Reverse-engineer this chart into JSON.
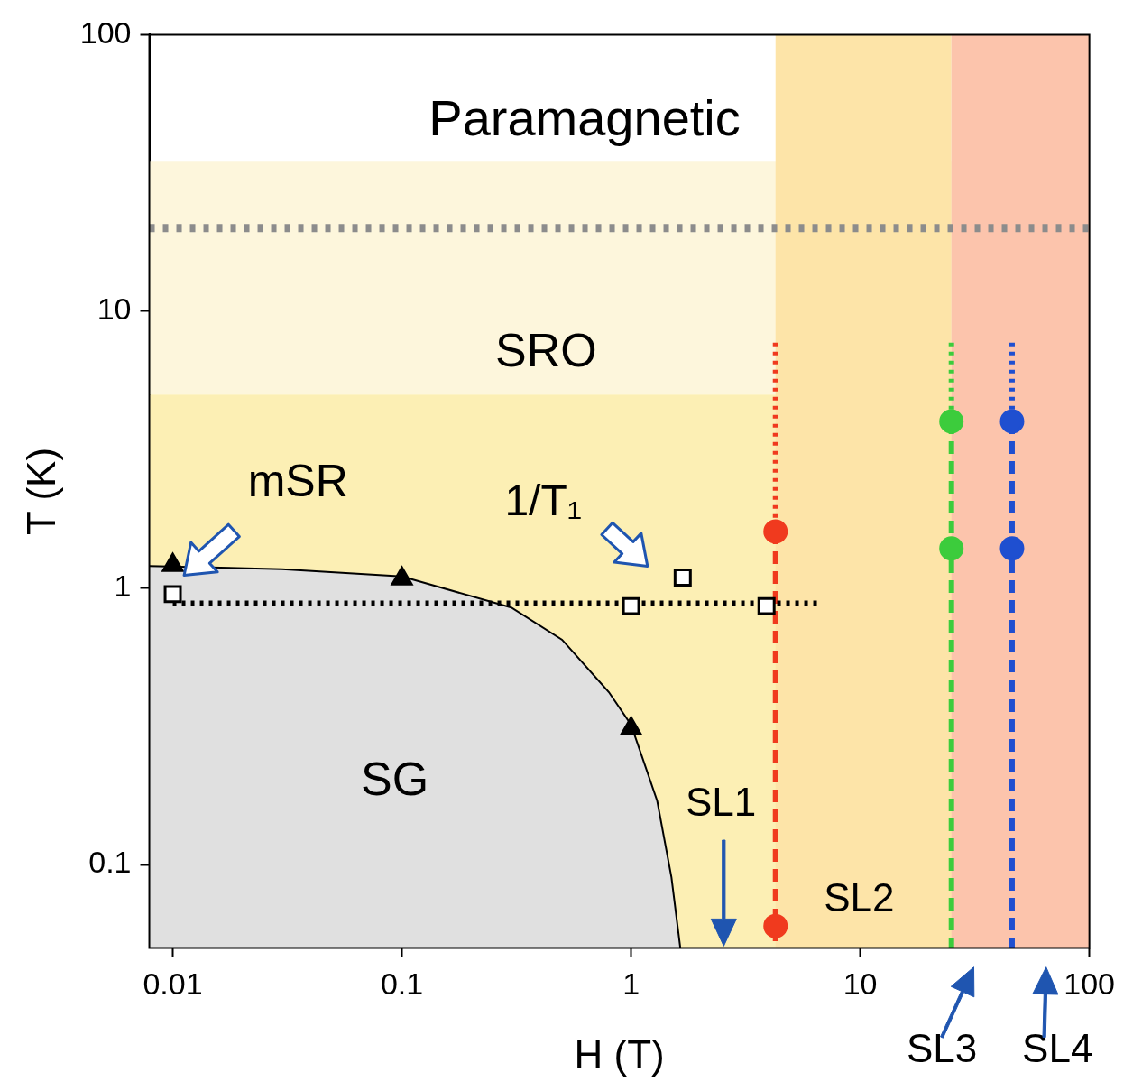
{
  "chart_data": {
    "type": "scatter",
    "xlabel": "H (T)",
    "ylabel": "T (K)",
    "log": "xy",
    "xlim": [
      0.0079,
      100
    ],
    "ylim": [
      0.05,
      100
    ],
    "xticks": [
      0.01,
      0.1,
      1,
      10,
      100
    ],
    "yticks": [
      0.1,
      1,
      10,
      100
    ],
    "grid": false,
    "legend": false,
    "bands": [
      {
        "axis": "y",
        "from": 5,
        "to": 35,
        "color": "#fdf6dc"
      },
      {
        "axis": "y",
        "from": 0.05,
        "to": 5,
        "color": "#fcefb4"
      },
      {
        "axis": "x",
        "from": 4.27,
        "to": 25,
        "color": "#fde4a8"
      },
      {
        "axis": "x",
        "from": 25,
        "to": 100,
        "color": "#fcc4ac"
      }
    ],
    "ref_lines": [
      {
        "axis": "y",
        "value": 20,
        "color": "#8c8c8c",
        "line_style": "dotted"
      }
    ],
    "series": [
      {
        "type": "area",
        "color": "#e0e0e0",
        "x": [
          0.0079,
          0.03,
          0.1,
          0.3,
          0.5,
          0.8,
          1,
          1.3,
          1.5,
          1.64
        ],
        "values": [
          1.2,
          1.17,
          1.1,
          0.85,
          0.65,
          0.42,
          0.32,
          0.17,
          0.09,
          0.05
        ],
        "marker": "none"
      },
      {
        "type": "line",
        "color": "#000000",
        "x": [
          0.01,
          6.7
        ],
        "values": [
          0.88,
          0.88
        ],
        "line_style": "dotted",
        "marker": "none"
      },
      {
        "type": "line",
        "color": "#f03a1e",
        "x": [
          4.27,
          4.27
        ],
        "values": [
          7.7,
          1.6
        ],
        "line_style": "dotted",
        "marker": "none"
      },
      {
        "type": "line",
        "color": "#f03a1e",
        "x": [
          4.27,
          4.27
        ],
        "values": [
          1.6,
          0.05
        ],
        "line_style": "dashed",
        "marker": "none"
      },
      {
        "type": "line",
        "color": "#3ccc3c",
        "x": [
          25,
          25
        ],
        "values": [
          7.7,
          4
        ],
        "line_style": "dotted",
        "marker": "none"
      },
      {
        "type": "line",
        "color": "#3ccc3c",
        "x": [
          25,
          25
        ],
        "values": [
          4,
          0.05
        ],
        "line_style": "dashed",
        "marker": "none"
      },
      {
        "type": "line",
        "color": "#1f4fd0",
        "x": [
          46,
          46
        ],
        "values": [
          7.7,
          4
        ],
        "line_style": "dotted",
        "marker": "none"
      },
      {
        "type": "line",
        "color": "#1f4fd0",
        "x": [
          46,
          46
        ],
        "values": [
          4,
          0.05
        ],
        "line_style": "dashed",
        "marker": "none"
      },
      {
        "type": "scatter",
        "color": "#000000",
        "x": [
          0.01,
          0.1,
          1
        ],
        "values": [
          1.21,
          1.08,
          0.31
        ],
        "marker": "triangle"
      },
      {
        "type": "scatter",
        "color": "#ffffff",
        "x": [
          0.01,
          1,
          3.9,
          1.68
        ],
        "values": [
          0.95,
          0.86,
          0.86,
          1.09
        ],
        "marker": "square"
      },
      {
        "type": "scatter",
        "color": "#f03a1e",
        "x": [
          4.27,
          4.27
        ],
        "values": [
          1.6,
          0.06
        ],
        "marker": "circle"
      },
      {
        "type": "scatter",
        "color": "#3ccc3c",
        "x": [
          25,
          25
        ],
        "values": [
          4,
          1.39
        ],
        "marker": "circle"
      },
      {
        "type": "scatter",
        "color": "#1f4fd0",
        "x": [
          46,
          46
        ],
        "values": [
          4,
          1.39
        ],
        "marker": "circle"
      }
    ],
    "annotations": [
      "Paramagnetic",
      "SRO",
      "SG",
      "mSR",
      "1/T₁",
      "SL1",
      "SL2",
      "SL3",
      "SL4"
    ]
  }
}
